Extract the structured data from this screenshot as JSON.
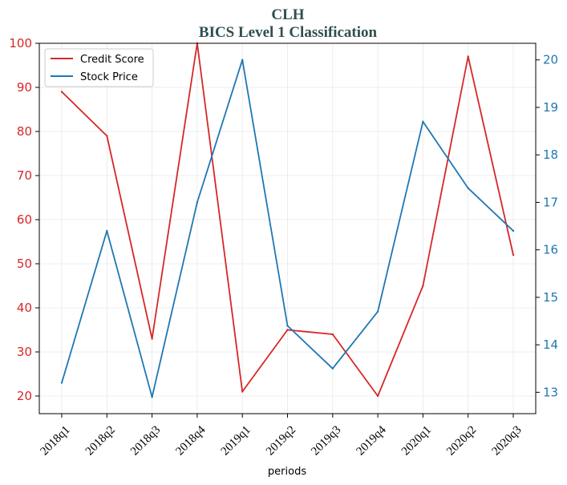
{
  "chart_data": {
    "type": "line",
    "title": "CLH",
    "subtitle": "BICS Level 1 Classification",
    "xlabel": "periods",
    "categories": [
      "2018q1",
      "2018q2",
      "2018q3",
      "2018q4",
      "2019q1",
      "2019q2",
      "2019q3",
      "2019q4",
      "2020q1",
      "2020q2",
      "2020q3"
    ],
    "series": [
      {
        "name": "Credit Score",
        "axis": "left",
        "color": "#d62728",
        "values": [
          89,
          79,
          33,
          100,
          21,
          35,
          34,
          20,
          45,
          97,
          52
        ]
      },
      {
        "name": "Stock Price",
        "axis": "right",
        "color": "#1f77b4",
        "values": [
          13.2,
          16.4,
          12.9,
          17.0,
          20.0,
          14.4,
          13.5,
          14.7,
          18.7,
          17.3,
          16.4
        ]
      }
    ],
    "ylim_left": [
      16,
      100
    ],
    "yticks_left": [
      20,
      30,
      40,
      50,
      60,
      70,
      80,
      90,
      100
    ],
    "ylim_right": [
      12.55,
      20.35
    ],
    "yticks_right": [
      13,
      14,
      15,
      16,
      17,
      18,
      19,
      20
    ],
    "grid": true,
    "legend_position": "top-left"
  }
}
